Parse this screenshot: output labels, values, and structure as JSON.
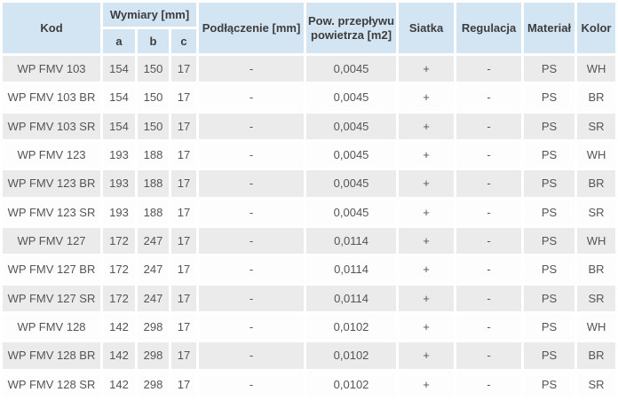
{
  "colors": {
    "header_bg": "#d3e4f2",
    "header_text": "#3d3d3d",
    "body_text": "#555555",
    "row_odd_bg": "#ebebeb",
    "row_even_bg": "#fdfdfd",
    "separator": "#ffffff"
  },
  "chart_data": {
    "type": "table",
    "title": "",
    "headers": {
      "kod": "Kod",
      "wymiary": "Wymiary [mm]",
      "dim_a": "a",
      "dim_b": "b",
      "dim_c": "c",
      "podlaczenie": "Podłączenie [mm]",
      "pow_przeplywu": "Pow. przepływu powietrza [m2]",
      "siatka": "Siatka",
      "regulacja": "Regulacja",
      "material": "Materiał",
      "kolor": "Kolor"
    },
    "column_keys": [
      "kod",
      "a",
      "b",
      "c",
      "podlaczenie",
      "pow",
      "siatka",
      "regulacja",
      "material",
      "kolor"
    ],
    "rows": [
      {
        "kod": "WP FMV 103",
        "a": "154",
        "b": "150",
        "c": "17",
        "podlaczenie": "-",
        "pow": "0,0045",
        "siatka": "+",
        "regulacja": "-",
        "material": "PS",
        "kolor": "WH"
      },
      {
        "kod": "WP FMV 103 BR",
        "a": "154",
        "b": "150",
        "c": "17",
        "podlaczenie": "-",
        "pow": "0,0045",
        "siatka": "+",
        "regulacja": "-",
        "material": "PS",
        "kolor": "BR"
      },
      {
        "kod": "WP FMV 103 SR",
        "a": "154",
        "b": "150",
        "c": "17",
        "podlaczenie": "-",
        "pow": "0,0045",
        "siatka": "+",
        "regulacja": "-",
        "material": "PS",
        "kolor": "SR"
      },
      {
        "kod": "WP FMV 123",
        "a": "193",
        "b": "188",
        "c": "17",
        "podlaczenie": "-",
        "pow": "0,0045",
        "siatka": "+",
        "regulacja": "-",
        "material": "PS",
        "kolor": "WH"
      },
      {
        "kod": "WP FMV 123 BR",
        "a": "193",
        "b": "188",
        "c": "17",
        "podlaczenie": "-",
        "pow": "0,0045",
        "siatka": "+",
        "regulacja": "-",
        "material": "PS",
        "kolor": "BR"
      },
      {
        "kod": "WP FMV 123 SR",
        "a": "193",
        "b": "188",
        "c": "17",
        "podlaczenie": "-",
        "pow": "0,0045",
        "siatka": "+",
        "regulacja": "-",
        "material": "PS",
        "kolor": "SR"
      },
      {
        "kod": "WP FMV 127",
        "a": "172",
        "b": "247",
        "c": "17",
        "podlaczenie": "-",
        "pow": "0,0114",
        "siatka": "+",
        "regulacja": "-",
        "material": "PS",
        "kolor": "WH"
      },
      {
        "kod": "WP FMV 127 BR",
        "a": "172",
        "b": "247",
        "c": "17",
        "podlaczenie": "-",
        "pow": "0,0114",
        "siatka": "+",
        "regulacja": "-",
        "material": "PS",
        "kolor": "BR"
      },
      {
        "kod": "WP FMV 127 SR",
        "a": "172",
        "b": "247",
        "c": "17",
        "podlaczenie": "-",
        "pow": "0,0114",
        "siatka": "+",
        "regulacja": "-",
        "material": "PS",
        "kolor": "SR"
      },
      {
        "kod": "WP FMV 128",
        "a": "142",
        "b": "298",
        "c": "17",
        "podlaczenie": "-",
        "pow": "0,0102",
        "siatka": "+",
        "regulacja": "-",
        "material": "PS",
        "kolor": "WH"
      },
      {
        "kod": "WP FMV 128 BR",
        "a": "142",
        "b": "298",
        "c": "17",
        "podlaczenie": "-",
        "pow": "0,0102",
        "siatka": "+",
        "regulacja": "-",
        "material": "PS",
        "kolor": "BR"
      },
      {
        "kod": "WP FMV 128 SR",
        "a": "142",
        "b": "298",
        "c": "17",
        "podlaczenie": "-",
        "pow": "0,0102",
        "siatka": "+",
        "regulacja": "-",
        "material": "PS",
        "kolor": "SR"
      }
    ]
  }
}
